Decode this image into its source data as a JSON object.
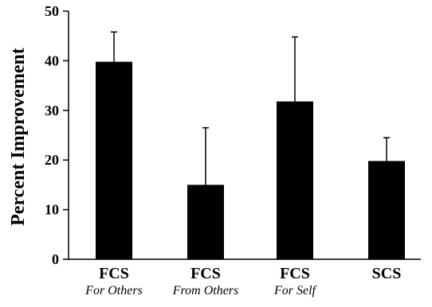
{
  "chart_data": {
    "type": "bar",
    "title": "",
    "xlabel": "",
    "ylabel": "Percent Improvement",
    "ylim": [
      0,
      50
    ],
    "yticks": [
      0,
      10,
      20,
      30,
      40,
      50
    ],
    "grid": false,
    "categories": [
      {
        "label": "FCS",
        "sublabel": "For Others"
      },
      {
        "label": "FCS",
        "sublabel": "From Others"
      },
      {
        "label": "FCS",
        "sublabel": "For Self"
      },
      {
        "label": "SCS",
        "sublabel": ""
      }
    ],
    "values": [
      39.8,
      15.0,
      31.8,
      19.8
    ],
    "error_upper": [
      6.0,
      11.5,
      13.0,
      4.7
    ],
    "bar_color": "#000000"
  }
}
